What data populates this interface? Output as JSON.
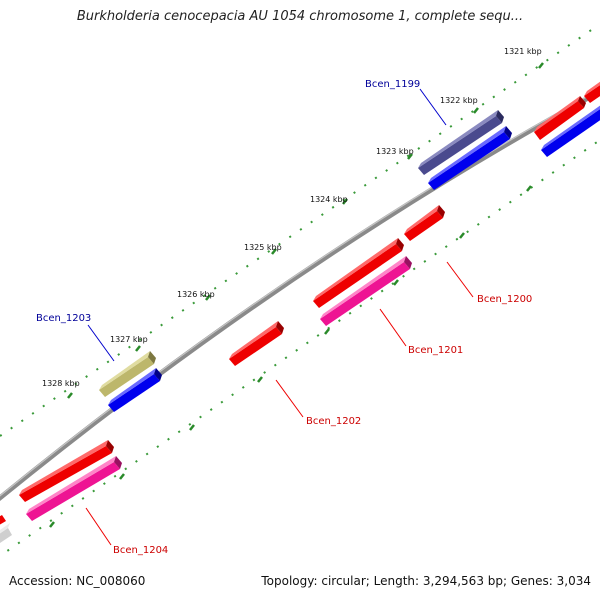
{
  "title": "Burkholderia cenocepacia AU 1054 chromosome 1, complete sequ...",
  "accession": "Accession: NC_008060",
  "summary": "Topology: circular; Length: 3,294,563 bp; Genes: 3,034",
  "scale_labels": [
    "1321 kbp",
    "1322 kbp",
    "1323 kbp",
    "1324 kbp",
    "1325 kbp",
    "1326 kbp",
    "1327 kbp",
    "1328 kbp"
  ],
  "gene_labels": {
    "bcen_1199": "Bcen_1199",
    "bcen_1200": "Bcen_1200",
    "bcen_1201": "Bcen_1201",
    "bcen_1202": "Bcen_1202",
    "bcen_1203": "Bcen_1203",
    "bcen_1204": "Bcen_1204"
  },
  "colors": {
    "backbone": "#8a8a8a",
    "outer_tick": "#3a9a3a",
    "inner_tick": "#3a9a3a",
    "gene_red": "#ee0000",
    "gene_blue": "#0000ee",
    "gene_magenta": "#ee1493",
    "gene_slate": "#4a4a8e",
    "gene_khaki": "#bdb76b",
    "gene_gray": "#cfcfcf",
    "label_red": "#cc0000",
    "label_blue": "#000099"
  }
}
